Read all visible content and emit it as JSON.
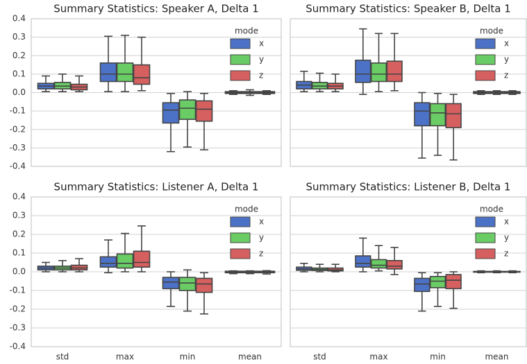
{
  "chart_data": [
    {
      "type": "box",
      "title": "Summary Statistics: Speaker A, Delta 1",
      "categories": [
        null,
        null,
        null,
        null
      ],
      "ylim": [
        -0.4,
        0.4
      ],
      "yticks": [
        -0.4,
        -0.3,
        -0.2,
        -0.1,
        {
          "value": 0,
          "label": "0.0"
        },
        0.1,
        0.2,
        0.3,
        0.4
      ],
      "ytick_labels": true,
      "grid": true,
      "legend": "upper right",
      "legend_title": "mode",
      "series": [
        {
          "name": "x",
          "color": "#4c72c8",
          "values": [
            [
              0.005,
              0.02,
              0.035,
              0.05,
              0.09
            ],
            [
              0.005,
              0.06,
              0.1,
              0.16,
              0.305
            ],
            [
              -0.32,
              -0.165,
              -0.095,
              -0.055,
              -0.005
            ],
            [
              -0.01,
              -0.005,
              0,
              0.005,
              0.01
            ]
          ]
        },
        {
          "name": "y",
          "color": "#6acc65",
          "values": [
            [
              0.005,
              0.02,
              0.035,
              0.055,
              0.1
            ],
            [
              0.005,
              0.06,
              0.1,
              0.16,
              0.31
            ],
            [
              -0.295,
              -0.145,
              -0.085,
              -0.04,
              0.005
            ],
            [
              -0.015,
              -0.005,
              0,
              0.005,
              0.015
            ]
          ]
        },
        {
          "name": "z",
          "color": "#d65f5f",
          "values": [
            [
              0.005,
              0.015,
              0.03,
              0.045,
              0.09
            ],
            [
              0.01,
              0.045,
              0.08,
              0.15,
              0.3
            ],
            [
              -0.31,
              -0.155,
              -0.09,
              -0.045,
              -0.005
            ],
            [
              -0.01,
              -0.005,
              0,
              0.005,
              0.01
            ]
          ]
        }
      ]
    },
    {
      "type": "box",
      "title": "Summary Statistics: Speaker B, Delta 1",
      "categories": [
        null,
        null,
        null,
        null
      ],
      "ylim": [
        -0.4,
        0.4
      ],
      "yticks": [
        -0.4,
        -0.3,
        -0.2,
        -0.1,
        {
          "value": 0,
          "label": "0.0"
        },
        0.1,
        0.2,
        0.3,
        0.4
      ],
      "ytick_labels": false,
      "grid": true,
      "legend": "upper right",
      "legend_title": "mode",
      "series": [
        {
          "name": "x",
          "color": "#4c72c8",
          "values": [
            [
              0.005,
              0.02,
              0.04,
              0.06,
              0.115
            ],
            [
              -0.01,
              0.055,
              0.1,
              0.175,
              0.345
            ],
            [
              -0.355,
              -0.18,
              -0.1,
              -0.055,
              0
            ],
            [
              -0.01,
              -0.005,
              0,
              0.005,
              0.01
            ]
          ]
        },
        {
          "name": "y",
          "color": "#6acc65",
          "values": [
            [
              0.005,
              0.02,
              0.035,
              0.055,
              0.105
            ],
            [
              0.005,
              0.06,
              0.1,
              0.16,
              0.32
            ],
            [
              -0.34,
              -0.18,
              -0.11,
              -0.06,
              -0.005
            ],
            [
              -0.01,
              -0.005,
              0,
              0.005,
              0.01
            ]
          ]
        },
        {
          "name": "z",
          "color": "#d65f5f",
          "values": [
            [
              0.005,
              0.02,
              0.035,
              0.05,
              0.1
            ],
            [
              0.01,
              0.06,
              0.1,
              0.17,
              0.32
            ],
            [
              -0.365,
              -0.19,
              -0.115,
              -0.06,
              -0.01
            ],
            [
              -0.01,
              -0.005,
              0,
              0.005,
              0.01
            ]
          ]
        }
      ]
    },
    {
      "type": "box",
      "title": "Summary Statistics: Listener A, Delta 1",
      "categories": [
        "std",
        "max",
        "min",
        "mean"
      ],
      "ylim": [
        -0.4,
        0.4
      ],
      "yticks": [
        -0.4,
        -0.3,
        -0.2,
        -0.1,
        {
          "value": 0,
          "label": "0.0"
        },
        0.1,
        0.2,
        0.3,
        0.4
      ],
      "ytick_labels": true,
      "grid": true,
      "legend": "upper right",
      "legend_title": "mode",
      "series": [
        {
          "name": "x",
          "color": "#4c72c8",
          "values": [
            [
              0,
              0.01,
              0.02,
              0.03,
              0.05
            ],
            [
              -0.005,
              0.025,
              0.045,
              0.08,
              0.17
            ],
            [
              -0.185,
              -0.09,
              -0.055,
              -0.03,
              0
            ],
            [
              -0.01,
              -0.005,
              0,
              0.003,
              0.005
            ]
          ]
        },
        {
          "name": "y",
          "color": "#6acc65",
          "values": [
            [
              0,
              0.01,
              0.02,
              0.03,
              0.06
            ],
            [
              0,
              0.02,
              0.045,
              0.095,
              0.205
            ],
            [
              -0.21,
              -0.1,
              -0.06,
              -0.03,
              0.01
            ],
            [
              -0.01,
              -0.005,
              0,
              0.003,
              0.005
            ]
          ]
        },
        {
          "name": "z",
          "color": "#d65f5f",
          "values": [
            [
              0,
              0.01,
              0.02,
              0.035,
              0.07
            ],
            [
              0,
              0.025,
              0.05,
              0.11,
              0.245
            ],
            [
              -0.225,
              -0.11,
              -0.065,
              -0.035,
              -0.005
            ],
            [
              -0.012,
              -0.005,
              0,
              0.003,
              0.006
            ]
          ]
        }
      ]
    },
    {
      "type": "box",
      "title": "Summary Statistics: Listener B, Delta 1",
      "categories": [
        "std",
        "max",
        "min",
        "mean"
      ],
      "ylim": [
        -0.4,
        0.4
      ],
      "yticks": [
        -0.4,
        -0.3,
        -0.2,
        -0.1,
        {
          "value": 0,
          "label": "0.0"
        },
        0.1,
        0.2,
        0.3,
        0.4
      ],
      "ytick_labels": false,
      "grid": true,
      "legend": "upper right",
      "legend_title": "mode",
      "series": [
        {
          "name": "x",
          "color": "#4c72c8",
          "values": [
            [
              0,
              0.008,
              0.015,
              0.025,
              0.045
            ],
            [
              0,
              0.025,
              0.045,
              0.085,
              0.18
            ],
            [
              -0.21,
              -0.105,
              -0.065,
              -0.035,
              -0.005
            ],
            [
              -0.005,
              -0.002,
              0,
              0.002,
              0.005
            ]
          ]
        },
        {
          "name": "y",
          "color": "#6acc65",
          "values": [
            [
              0,
              0.007,
              0.013,
              0.02,
              0.04
            ],
            [
              0.005,
              0.02,
              0.035,
              0.065,
              0.14
            ],
            [
              -0.185,
              -0.085,
              -0.05,
              -0.025,
              -0.005
            ],
            [
              -0.005,
              -0.002,
              0,
              0.002,
              0.005
            ]
          ]
        },
        {
          "name": "z",
          "color": "#d65f5f",
          "values": [
            [
              0,
              0.005,
              0.01,
              0.02,
              0.04
            ],
            [
              -0.015,
              0.015,
              0.03,
              0.06,
              0.13
            ],
            [
              -0.195,
              -0.09,
              -0.045,
              -0.015,
              0
            ],
            [
              -0.005,
              -0.002,
              0,
              0.002,
              0.005
            ]
          ]
        }
      ]
    }
  ]
}
